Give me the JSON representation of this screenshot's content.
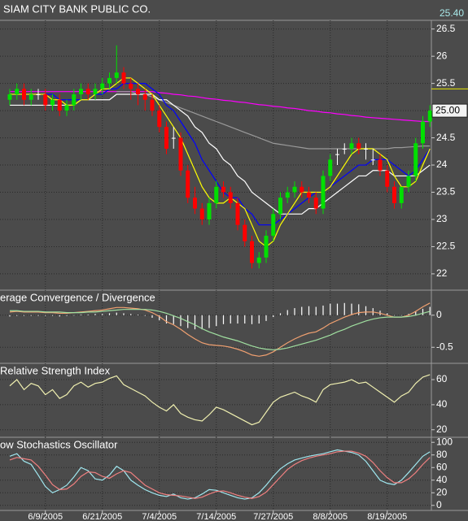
{
  "header": {
    "title": "SIAM CITY BANK PUBLIC CO.",
    "quote": {
      "value": 25.4,
      "label": "25.40"
    },
    "quote_color": "#e8e800"
  },
  "chart_data": [
    {
      "type": "candlestick",
      "categories": [
        null,
        null,
        null,
        null,
        null,
        "6/9/2005",
        null,
        null,
        null,
        null,
        null,
        null,
        null,
        "6/21/2005",
        null,
        null,
        null,
        null,
        null,
        null,
        null,
        "7/4/2005",
        null,
        null,
        null,
        null,
        null,
        null,
        null,
        "7/14/2005",
        null,
        null,
        null,
        null,
        null,
        null,
        null,
        "7/27/2005",
        null,
        null,
        null,
        null,
        null,
        null,
        null,
        "8/8/2005",
        null,
        null,
        null,
        null,
        null,
        null,
        null,
        "8/19/2005",
        null,
        null,
        null,
        null,
        null,
        null
      ],
      "open": [
        25.2,
        25.3,
        25.4,
        25.2,
        25.3,
        25.3,
        25.1,
        25.2,
        25.0,
        25.1,
        25.3,
        25.4,
        25.3,
        25.4,
        25.5,
        25.6,
        25.7,
        25.5,
        25.4,
        25.3,
        25.2,
        25.0,
        24.7,
        24.5,
        24.5,
        23.9,
        23.4,
        23.2,
        23.0,
        23.3,
        23.6,
        23.5,
        23.3,
        22.9,
        22.6,
        22.2,
        22.3,
        22.7,
        23.1,
        23.4,
        23.5,
        23.6,
        23.5,
        23.4,
        23.2,
        23.8,
        24.2,
        24.3,
        24.3,
        24.4,
        24.3,
        24.1,
        24.1,
        23.9,
        23.6,
        23.3,
        23.6,
        23.8,
        24.4,
        24.8
      ],
      "high": [
        25.4,
        25.5,
        25.5,
        25.4,
        25.4,
        25.4,
        25.3,
        25.3,
        25.2,
        25.4,
        25.5,
        25.5,
        25.5,
        25.6,
        25.7,
        26.2,
        25.8,
        25.6,
        25.5,
        25.4,
        25.3,
        25.1,
        24.8,
        24.7,
        24.6,
        24.0,
        23.6,
        23.3,
        23.4,
        23.7,
        23.7,
        23.6,
        23.4,
        23.0,
        22.7,
        22.4,
        22.8,
        23.2,
        23.5,
        23.6,
        23.7,
        23.7,
        23.6,
        23.5,
        23.9,
        24.2,
        24.3,
        24.4,
        24.5,
        24.5,
        24.4,
        24.3,
        24.2,
        24.0,
        23.7,
        23.6,
        23.9,
        24.5,
        24.9,
        25.1
      ],
      "low": [
        25.1,
        25.2,
        25.1,
        25.1,
        25.2,
        25.0,
        25.0,
        24.9,
        24.9,
        25.0,
        25.2,
        25.2,
        25.2,
        25.3,
        25.4,
        25.5,
        25.4,
        25.2,
        25.1,
        25.0,
        24.9,
        24.6,
        24.2,
        24.3,
        23.8,
        23.3,
        23.1,
        22.9,
        22.9,
        23.2,
        23.4,
        23.2,
        22.8,
        22.5,
        22.1,
        22.1,
        22.2,
        22.6,
        23.0,
        23.3,
        23.4,
        23.4,
        23.3,
        23.1,
        23.1,
        23.7,
        24.0,
        24.2,
        24.2,
        24.2,
        24.1,
        24.0,
        23.8,
        23.5,
        23.2,
        23.2,
        23.5,
        23.7,
        24.3,
        24.7
      ],
      "close": [
        25.3,
        25.4,
        25.2,
        25.3,
        25.3,
        25.1,
        25.2,
        25.0,
        25.1,
        25.3,
        25.4,
        25.3,
        25.4,
        25.5,
        25.6,
        25.7,
        25.5,
        25.4,
        25.3,
        25.2,
        25.0,
        24.7,
        24.3,
        24.5,
        23.9,
        23.4,
        23.2,
        23.0,
        23.3,
        23.6,
        23.5,
        23.3,
        22.9,
        22.6,
        22.2,
        22.3,
        22.7,
        23.1,
        23.4,
        23.5,
        23.6,
        23.5,
        23.4,
        23.2,
        23.8,
        24.1,
        24.2,
        24.3,
        24.4,
        24.3,
        24.3,
        24.1,
        23.9,
        23.6,
        23.3,
        23.6,
        23.8,
        24.4,
        24.8,
        25.0
      ],
      "up_color": "#00e000",
      "down_color": "#ff0000",
      "flat_color": "#ffffff",
      "series": [
        {
          "color": "#ff00ff",
          "values": [
            25.35,
            25.35,
            25.35,
            25.35,
            25.35,
            25.35,
            25.35,
            25.35,
            25.35,
            25.35,
            25.35,
            25.35,
            25.35,
            25.35,
            25.35,
            25.35,
            25.35,
            25.35,
            25.35,
            25.35,
            25.35,
            25.33,
            25.32,
            25.3,
            25.29,
            25.27,
            25.26,
            25.24,
            25.22,
            25.21,
            25.19,
            25.18,
            25.16,
            25.15,
            25.13,
            25.11,
            25.1,
            25.08,
            25.07,
            25.05,
            25.04,
            25.02,
            25.0,
            24.99,
            24.97,
            24.96,
            24.94,
            24.93,
            24.91,
            24.9,
            24.88,
            24.87,
            24.86,
            24.85,
            24.84,
            24.83,
            24.82,
            24.81,
            24.8,
            24.8
          ]
        },
        {
          "color": "#9a9a9a",
          "values": [
            null,
            null,
            null,
            null,
            null,
            null,
            null,
            null,
            null,
            null,
            null,
            null,
            null,
            null,
            null,
            25.35,
            25.35,
            25.35,
            25.3,
            25.3,
            25.25,
            25.2,
            25.15,
            25.1,
            25.05,
            25.0,
            24.95,
            24.9,
            24.85,
            24.8,
            24.75,
            24.7,
            24.65,
            24.6,
            24.55,
            24.5,
            24.45,
            24.4,
            24.38,
            24.36,
            24.34,
            24.32,
            24.3,
            24.3,
            24.3,
            24.3,
            24.3,
            24.3,
            24.3,
            24.3,
            24.3,
            24.3,
            24.3,
            24.3,
            24.32,
            24.32,
            24.33,
            24.34,
            24.35,
            24.35
          ]
        },
        {
          "color": "#ffffff",
          "values": [
            25.1,
            25.1,
            25.1,
            25.1,
            25.1,
            25.1,
            25.1,
            25.1,
            25.1,
            25.1,
            25.2,
            25.2,
            25.2,
            25.2,
            25.2,
            25.3,
            25.3,
            25.3,
            25.3,
            25.3,
            25.3,
            25.2,
            25.2,
            25.1,
            25.0,
            24.9,
            24.7,
            24.6,
            24.4,
            24.3,
            24.1,
            24.0,
            23.8,
            23.7,
            23.5,
            23.4,
            23.3,
            23.2,
            23.1,
            23.1,
            23.1,
            23.1,
            23.2,
            23.2,
            23.3,
            23.4,
            23.5,
            23.6,
            23.7,
            23.8,
            23.8,
            23.9,
            23.9,
            23.9,
            23.8,
            23.8,
            23.8,
            23.8,
            23.9,
            24.0
          ]
        },
        {
          "color": "#0000ff",
          "values": [
            25.3,
            25.3,
            25.3,
            25.3,
            25.3,
            25.3,
            25.3,
            25.2,
            25.2,
            25.2,
            25.2,
            25.2,
            25.3,
            25.3,
            25.4,
            25.4,
            25.5,
            25.5,
            25.5,
            25.5,
            25.4,
            25.3,
            25.1,
            25.0,
            24.8,
            24.6,
            24.4,
            24.1,
            23.9,
            23.7,
            23.5,
            23.4,
            23.4,
            23.2,
            23.1,
            22.9,
            22.9,
            22.9,
            23.0,
            23.1,
            23.2,
            23.3,
            23.4,
            23.5,
            23.5,
            23.6,
            23.7,
            23.8,
            23.9,
            24.0,
            24.0,
            24.1,
            24.1,
            24.1,
            24.0,
            23.9,
            23.8,
            23.9,
            24.1,
            24.3
          ]
        },
        {
          "color": "#ffff00",
          "values": [
            25.3,
            25.3,
            25.3,
            25.3,
            25.3,
            25.3,
            25.2,
            25.2,
            25.1,
            25.1,
            25.2,
            25.2,
            25.3,
            25.4,
            25.4,
            25.5,
            25.6,
            25.6,
            25.5,
            25.4,
            25.3,
            25.1,
            24.9,
            24.7,
            24.5,
            24.2,
            23.9,
            23.6,
            23.4,
            23.3,
            23.3,
            23.4,
            23.3,
            23.2,
            22.9,
            22.6,
            22.5,
            22.6,
            22.9,
            23.1,
            23.3,
            23.5,
            23.5,
            23.5,
            23.5,
            23.6,
            23.8,
            24.0,
            24.2,
            24.3,
            24.3,
            24.3,
            24.2,
            24.1,
            23.8,
            23.6,
            23.6,
            23.7,
            24.0,
            24.3
          ]
        }
      ],
      "last": {
        "value": 25,
        "label": "25.00"
      },
      "ylim": [
        21.7,
        26.66
      ],
      "yticks": [
        22,
        22.5,
        23,
        23.5,
        24,
        24.5,
        25,
        25.5,
        26,
        26.5
      ],
      "grid": true
    },
    {
      "type": "line",
      "title": "erage Convergence / Divergence",
      "histogram": {
        "color": "#ffffff",
        "values": [
          -0.02,
          -0.01,
          -0.01,
          -0.01,
          -0.01,
          -0.01,
          -0.01,
          -0.02,
          -0.01,
          0.0,
          0.01,
          0.01,
          0.02,
          0.02,
          0.03,
          0.04,
          0.03,
          0.02,
          0.01,
          -0.01,
          -0.04,
          -0.08,
          -0.13,
          -0.14,
          -0.17,
          -0.2,
          -0.22,
          -0.22,
          -0.2,
          -0.17,
          -0.14,
          -0.13,
          -0.13,
          -0.13,
          -0.14,
          -0.13,
          -0.09,
          -0.03,
          0.03,
          0.08,
          0.11,
          0.13,
          0.14,
          0.13,
          0.15,
          0.18,
          0.18,
          0.19,
          0.18,
          0.17,
          0.14,
          0.11,
          0.07,
          0.03,
          0.0,
          0.0,
          0.02,
          0.06,
          0.1,
          0.13
        ]
      },
      "series": [
        {
          "color": "#f0a070",
          "values": [
            0.05,
            0.06,
            0.05,
            0.05,
            0.05,
            0.04,
            0.04,
            0.03,
            0.03,
            0.04,
            0.05,
            0.06,
            0.07,
            0.08,
            0.1,
            0.12,
            0.12,
            0.11,
            0.1,
            0.08,
            0.04,
            -0.02,
            -0.1,
            -0.15,
            -0.22,
            -0.3,
            -0.37,
            -0.43,
            -0.46,
            -0.47,
            -0.48,
            -0.5,
            -0.53,
            -0.57,
            -0.62,
            -0.64,
            -0.62,
            -0.57,
            -0.5,
            -0.43,
            -0.37,
            -0.32,
            -0.28,
            -0.26,
            -0.2,
            -0.13,
            -0.08,
            -0.03,
            0.01,
            0.04,
            0.05,
            0.05,
            0.03,
            0.0,
            -0.03,
            -0.03,
            0.0,
            0.06,
            0.13,
            0.19
          ]
        },
        {
          "color": "#a0e0a0",
          "values": [
            0.07,
            0.07,
            0.06,
            0.06,
            0.06,
            0.05,
            0.05,
            0.05,
            0.04,
            0.04,
            0.04,
            0.05,
            0.05,
            0.06,
            0.07,
            0.08,
            0.09,
            0.09,
            0.09,
            0.09,
            0.08,
            0.06,
            0.03,
            -0.01,
            -0.05,
            -0.1,
            -0.15,
            -0.21,
            -0.26,
            -0.3,
            -0.34,
            -0.37,
            -0.4,
            -0.44,
            -0.48,
            -0.51,
            -0.53,
            -0.54,
            -0.53,
            -0.51,
            -0.48,
            -0.45,
            -0.42,
            -0.39,
            -0.35,
            -0.31,
            -0.26,
            -0.22,
            -0.17,
            -0.13,
            -0.09,
            -0.06,
            -0.04,
            -0.03,
            -0.03,
            -0.03,
            -0.02,
            0.0,
            0.03,
            0.06
          ]
        }
      ],
      "ylim": [
        -0.75,
        0.39
      ],
      "yticks": [
        0,
        -0.5
      ],
      "grid": true
    },
    {
      "type": "line",
      "title": "Relative Strength Index",
      "series": [
        {
          "color": "#f0f0b0",
          "values": [
            55,
            60,
            52,
            57,
            55,
            48,
            52,
            45,
            48,
            55,
            58,
            54,
            57,
            58,
            61,
            63,
            56,
            53,
            50,
            47,
            42,
            38,
            35,
            40,
            33,
            30,
            28,
            27,
            32,
            38,
            36,
            33,
            30,
            27,
            24,
            26,
            34,
            42,
            46,
            48,
            50,
            47,
            45,
            42,
            52,
            56,
            57,
            58,
            60,
            57,
            58,
            54,
            50,
            46,
            42,
            47,
            50,
            57,
            62,
            64
          ]
        }
      ],
      "ylim": [
        14,
        73
      ],
      "yticks": [
        20,
        40,
        60
      ],
      "grid": true
    },
    {
      "type": "line",
      "title": "ow Stochastics Oscillator",
      "series": [
        {
          "color": "#a0e8f0",
          "values": [
            78,
            82,
            70,
            65,
            48,
            30,
            20,
            25,
            32,
            45,
            60,
            55,
            42,
            40,
            48,
            62,
            55,
            40,
            32,
            25,
            20,
            16,
            14,
            18,
            12,
            10,
            12,
            18,
            25,
            24,
            20,
            16,
            12,
            10,
            12,
            20,
            32,
            46,
            58,
            66,
            72,
            75,
            78,
            80,
            82,
            85,
            88,
            86,
            84,
            80,
            70,
            55,
            40,
            35,
            33,
            40,
            52,
            65,
            78,
            85
          ]
        },
        {
          "color": "#f08080",
          "values": [
            72,
            76,
            74,
            72,
            62,
            48,
            33,
            25,
            26,
            34,
            46,
            53,
            52,
            46,
            43,
            50,
            55,
            52,
            42,
            32,
            26,
            20,
            17,
            16,
            15,
            13,
            11,
            13,
            18,
            22,
            23,
            20,
            16,
            13,
            11,
            14,
            21,
            33,
            45,
            57,
            65,
            71,
            75,
            78,
            80,
            82,
            85,
            86,
            86,
            83,
            78,
            68,
            55,
            44,
            36,
            36,
            42,
            52,
            65,
            76
          ]
        }
      ],
      "ylim": [
        -8,
        108
      ],
      "yticks": [
        0,
        20,
        40,
        60,
        80,
        100
      ],
      "grid": true
    }
  ]
}
